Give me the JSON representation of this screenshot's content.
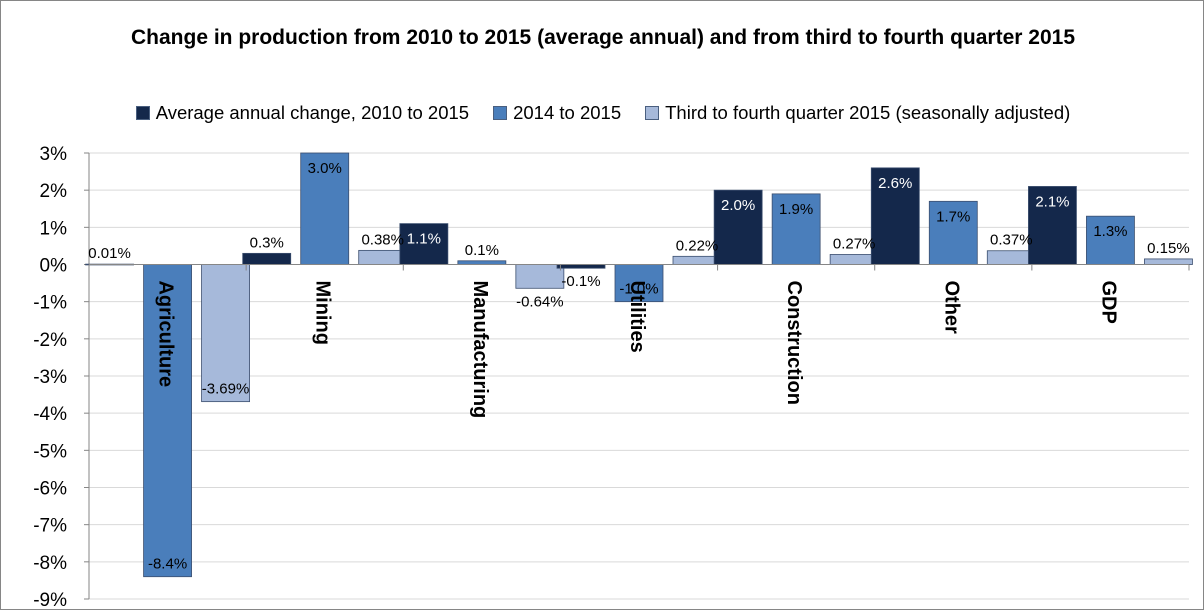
{
  "chart_data": {
    "type": "bar",
    "title": "Change in production from 2010 to 2015 (average annual) and from third to fourth quarter 2015",
    "categories": [
      "Agriculture",
      "Mining",
      "Manufacturing",
      "Utilities",
      "Construction",
      "Other",
      "GDP"
    ],
    "series": [
      {
        "name": "Average annual change, 2010 to 2015",
        "color": "#14284b",
        "values": [
          0.01,
          0.3,
          1.1,
          -0.1,
          2.0,
          2.6,
          2.1
        ],
        "labels": [
          "0.01%",
          "0.3%",
          "1.1%",
          "-0.1%",
          "2.0%",
          "2.6%",
          "2.1%"
        ]
      },
      {
        "name": "2014 to 2015",
        "color": "#4a7ebb",
        "values": [
          -8.4,
          3.0,
          0.1,
          -1.0,
          1.9,
          1.7,
          1.3
        ],
        "labels": [
          "-8.4%",
          "3.0%",
          "0.1%",
          "-1.0%",
          "1.9%",
          "1.7%",
          "1.3%"
        ]
      },
      {
        "name": "Third to fourth quarter 2015 (seasonally adjusted)",
        "color": "#a6b9da",
        "values": [
          -3.69,
          0.38,
          -0.64,
          0.22,
          0.27,
          0.37,
          0.15
        ],
        "labels": [
          "-3.69%",
          "0.38%",
          "-0.64%",
          "0.22%",
          "0.27%",
          "0.37%",
          "0.15%"
        ]
      }
    ],
    "y_ticks": [
      "3%",
      "2%",
      "1%",
      "0%",
      "-1%",
      "-2%",
      "-3%",
      "-4%",
      "-5%",
      "-6%",
      "-7%",
      "-8%",
      "-9%"
    ],
    "ylim": [
      -9,
      3
    ],
    "xlabel": "",
    "ylabel": "",
    "grid": true,
    "legend_position": "top"
  }
}
